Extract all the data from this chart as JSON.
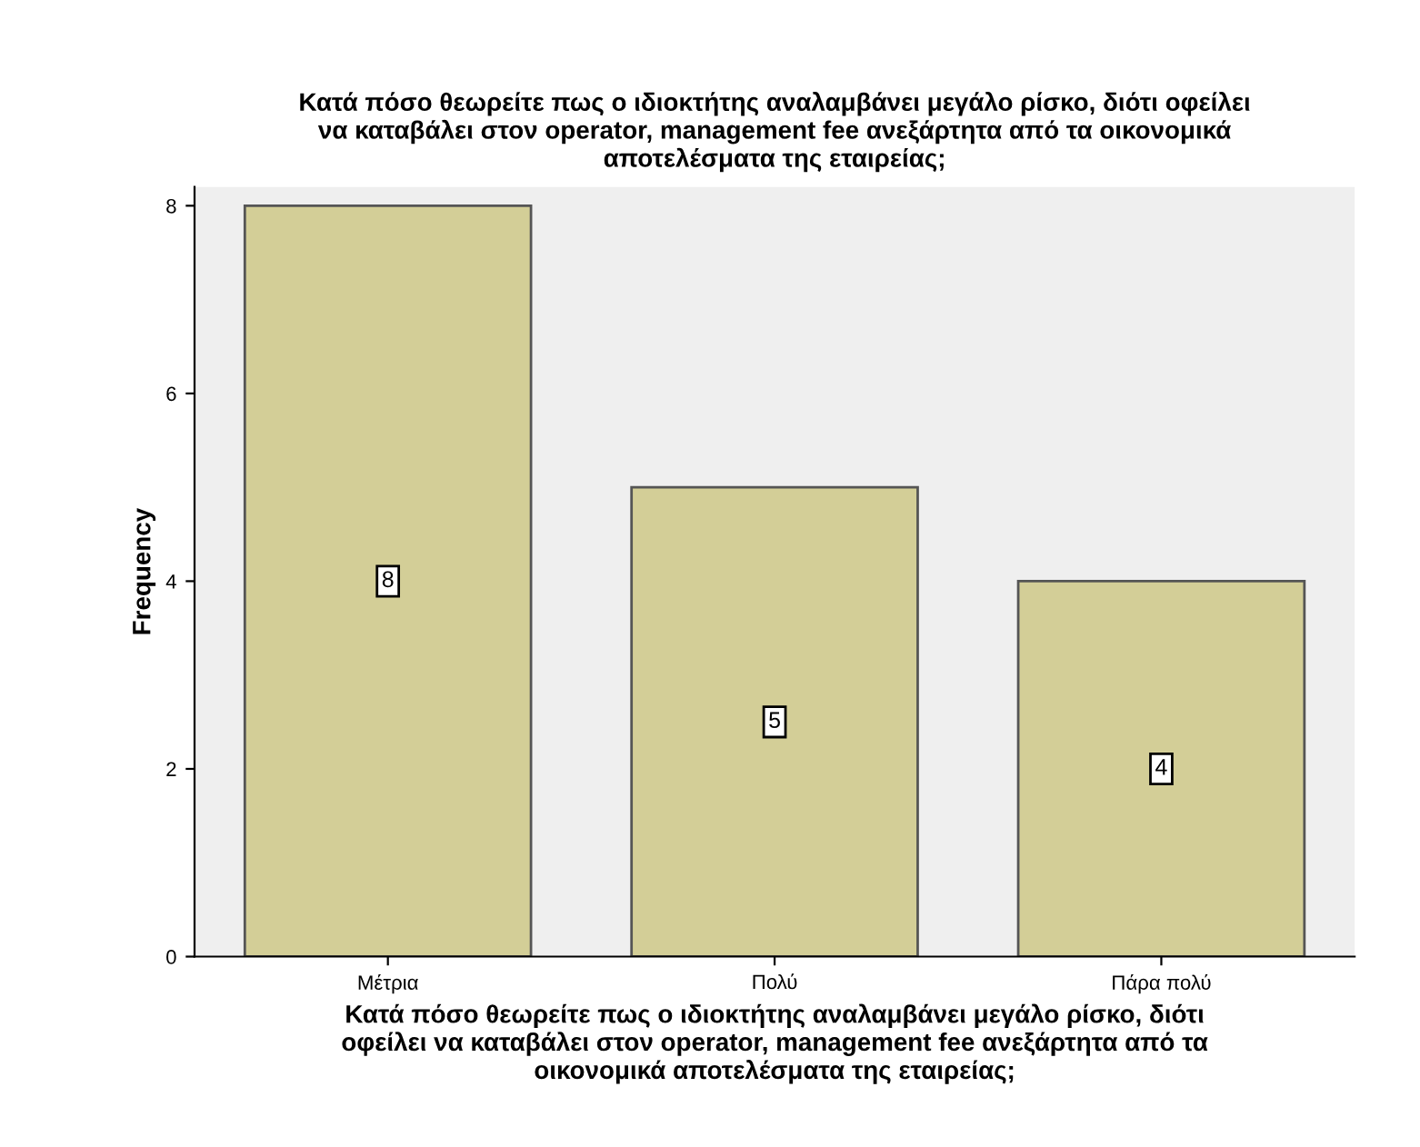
{
  "chart_data": {
    "type": "bar",
    "title": "Κατά πόσο θεωρείτε πως ο ιδιοκτήτης αναλαμβάνει μεγάλο ρίσκο, διότι οφείλει\nνα καταβάλει στον operator, management fee ανεξάρτητα από τα οικονομικά\nαποτελέσματα της εταιρείας;",
    "xlabel": "Κατά πόσο θεωρείτε πως ο ιδιοκτήτης αναλαμβάνει μεγάλο ρίσκο, διότι\nοφείλει να καταβάλει στον operator, management fee ανεξάρτητα από τα\nοικονομικά αποτελέσματα της εταιρείας;",
    "ylabel": "Frequency",
    "categories": [
      "Μέτρια",
      "Πολύ",
      "Πάρα πολύ"
    ],
    "values": [
      8,
      5,
      4
    ],
    "color": "#d3ce97",
    "ylim": [
      0,
      8.2
    ],
    "yticks": [
      0,
      2,
      4,
      6,
      8
    ],
    "grid": false,
    "data_labels": true
  }
}
